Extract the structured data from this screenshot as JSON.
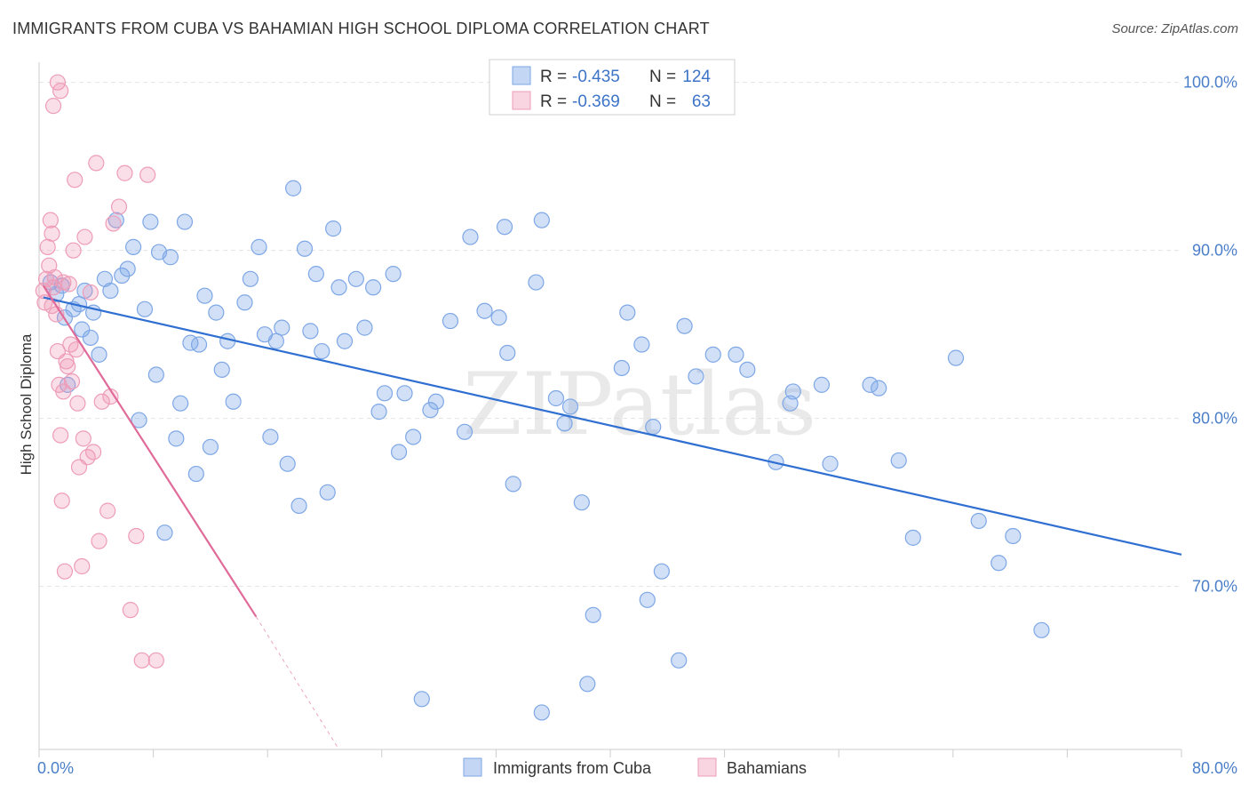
{
  "title": "IMMIGRANTS FROM CUBA VS BAHAMIAN HIGH SCHOOL DIPLOMA CORRELATION CHART",
  "source": "Source: ZipAtlas.com",
  "watermark": "ZIPatlas",
  "colors": {
    "cuba_fill": "rgba(122,167,232,0.35)",
    "cuba_stroke": "#7ea7e6",
    "cuba_line": "#2f6fd1",
    "bah_fill": "rgba(240,150,180,0.30)",
    "bah_stroke": "#ee9cb8",
    "bah_line": "#e06a98",
    "grid": "#e4e4e4",
    "tick_text": "#4a7fc8"
  },
  "legend": {
    "rows": [
      {
        "r_label": "R =",
        "r_value": "-0.435",
        "n_label": "N =",
        "n_value": "124"
      },
      {
        "r_label": "R =",
        "r_value": "-0.369",
        "n_label": "N =",
        "n_value": "63"
      }
    ]
  },
  "chart_data": {
    "type": "scatter",
    "title": "IMMIGRANTS FROM CUBA VS BAHAMIAN HIGH SCHOOL DIPLOMA CORRELATION CHART",
    "xlabel": "",
    "ylabel": "High School Diploma",
    "xlim": [
      0,
      80
    ],
    "ylim": [
      60.3,
      101.2
    ],
    "x_ticks": [
      {
        "value": 0,
        "label": "0.0%"
      },
      {
        "value": 80,
        "label": "80.0%"
      }
    ],
    "y_ticks": [
      {
        "value": 70,
        "label": "70.0%"
      },
      {
        "value": 80,
        "label": "80.0%"
      },
      {
        "value": 90,
        "label": "90.0%"
      },
      {
        "value": 100,
        "label": "100.0%"
      }
    ],
    "grid": true,
    "legend_position": "top-center",
    "series": [
      {
        "name": "Immigrants from Cuba",
        "trend": {
          "x0": 0.3,
          "y0": 87.2,
          "x1": 80,
          "y1": 71.9
        },
        "points": [
          [
            0.8,
            88.1
          ],
          [
            1.2,
            87.4
          ],
          [
            1.6,
            87.9
          ],
          [
            1.8,
            86.0
          ],
          [
            2.0,
            82.0
          ],
          [
            2.4,
            86.5
          ],
          [
            2.8,
            86.8
          ],
          [
            3.0,
            85.3
          ],
          [
            3.2,
            87.6
          ],
          [
            3.6,
            84.8
          ],
          [
            3.8,
            86.3
          ],
          [
            4.2,
            83.8
          ],
          [
            4.6,
            88.3
          ],
          [
            5.0,
            87.6
          ],
          [
            5.4,
            91.8
          ],
          [
            5.8,
            88.5
          ],
          [
            6.2,
            88.9
          ],
          [
            6.6,
            90.2
          ],
          [
            7.0,
            79.9
          ],
          [
            7.4,
            86.5
          ],
          [
            7.8,
            91.7
          ],
          [
            8.2,
            82.6
          ],
          [
            8.4,
            89.9
          ],
          [
            8.8,
            73.2
          ],
          [
            9.2,
            89.6
          ],
          [
            9.6,
            78.8
          ],
          [
            9.9,
            80.9
          ],
          [
            10.2,
            91.7
          ],
          [
            10.6,
            84.5
          ],
          [
            11.0,
            76.7
          ],
          [
            11.2,
            84.4
          ],
          [
            11.6,
            87.3
          ],
          [
            12.0,
            78.3
          ],
          [
            12.4,
            86.3
          ],
          [
            12.8,
            82.9
          ],
          [
            13.2,
            84.6
          ],
          [
            13.6,
            81.0
          ],
          [
            14.4,
            86.9
          ],
          [
            14.8,
            88.3
          ],
          [
            15.4,
            90.2
          ],
          [
            15.8,
            85.0
          ],
          [
            16.2,
            78.9
          ],
          [
            16.6,
            84.6
          ],
          [
            17.0,
            85.4
          ],
          [
            17.4,
            77.3
          ],
          [
            17.8,
            93.7
          ],
          [
            18.2,
            74.8
          ],
          [
            18.6,
            90.1
          ],
          [
            19.0,
            85.2
          ],
          [
            19.4,
            88.6
          ],
          [
            19.8,
            84.0
          ],
          [
            20.2,
            75.6
          ],
          [
            20.6,
            91.3
          ],
          [
            21.0,
            87.8
          ],
          [
            21.4,
            84.6
          ],
          [
            22.2,
            88.3
          ],
          [
            22.8,
            85.4
          ],
          [
            23.4,
            87.8
          ],
          [
            23.8,
            80.4
          ],
          [
            24.2,
            81.5
          ],
          [
            24.8,
            88.6
          ],
          [
            25.2,
            78.0
          ],
          [
            25.6,
            81.5
          ],
          [
            26.2,
            78.9
          ],
          [
            26.8,
            63.3
          ],
          [
            27.4,
            80.5
          ],
          [
            27.8,
            81.0
          ],
          [
            28.8,
            85.8
          ],
          [
            29.8,
            79.2
          ],
          [
            30.2,
            90.8
          ],
          [
            31.2,
            86.4
          ],
          [
            32.2,
            86.0
          ],
          [
            32.6,
            91.4
          ],
          [
            32.8,
            83.9
          ],
          [
            33.2,
            76.1
          ],
          [
            34.8,
            88.1
          ],
          [
            35.2,
            91.8
          ],
          [
            36.2,
            81.2
          ],
          [
            36.8,
            79.7
          ],
          [
            37.2,
            80.7
          ],
          [
            38.0,
            75.0
          ],
          [
            38.4,
            64.2
          ],
          [
            38.8,
            68.3
          ],
          [
            40.8,
            83.0
          ],
          [
            41.2,
            86.3
          ],
          [
            42.2,
            84.4
          ],
          [
            42.6,
            69.2
          ],
          [
            43.0,
            79.5
          ],
          [
            43.6,
            70.9
          ],
          [
            44.8,
            65.6
          ],
          [
            45.2,
            85.5
          ],
          [
            46.0,
            82.5
          ],
          [
            47.2,
            83.8
          ],
          [
            48.8,
            83.8
          ],
          [
            49.6,
            82.9
          ],
          [
            51.6,
            77.4
          ],
          [
            52.6,
            80.9
          ],
          [
            52.8,
            81.6
          ],
          [
            54.8,
            82.0
          ],
          [
            55.4,
            77.3
          ],
          [
            58.2,
            82.0
          ],
          [
            58.8,
            81.8
          ],
          [
            60.2,
            77.5
          ],
          [
            61.2,
            72.9
          ],
          [
            64.2,
            83.6
          ],
          [
            65.8,
            73.9
          ],
          [
            67.2,
            71.4
          ],
          [
            68.2,
            73.0
          ],
          [
            70.2,
            67.4
          ],
          [
            35.2,
            62.5
          ]
        ]
      },
      {
        "name": "Bahamians",
        "trend": {
          "x0": 0.3,
          "y0": 87.9,
          "x1": 15.2,
          "y1": 68.2
        },
        "trend_dashed": {
          "x0": 15.2,
          "y0": 68.2,
          "x1": 21.0,
          "y1": 60.3
        },
        "points": [
          [
            0.3,
            87.6
          ],
          [
            0.4,
            86.9
          ],
          [
            0.5,
            88.3
          ],
          [
            0.6,
            90.2
          ],
          [
            0.7,
            89.1
          ],
          [
            0.8,
            91.8
          ],
          [
            0.9,
            91.0
          ],
          [
            1.0,
            87.8
          ],
          [
            1.1,
            88.4
          ],
          [
            1.2,
            86.2
          ],
          [
            1.3,
            84.0
          ],
          [
            1.4,
            82.0
          ],
          [
            1.5,
            79.0
          ],
          [
            1.6,
            75.1
          ],
          [
            1.7,
            81.6
          ],
          [
            1.8,
            70.9
          ],
          [
            1.9,
            83.4
          ],
          [
            2.0,
            83.1
          ],
          [
            2.1,
            88.0
          ],
          [
            2.2,
            84.4
          ],
          [
            2.3,
            82.2
          ],
          [
            2.4,
            90.0
          ],
          [
            2.5,
            94.2
          ],
          [
            2.6,
            84.1
          ],
          [
            2.8,
            77.1
          ],
          [
            3.0,
            71.2
          ],
          [
            3.2,
            90.8
          ],
          [
            3.4,
            77.7
          ],
          [
            3.6,
            87.5
          ],
          [
            3.8,
            78.0
          ],
          [
            4.0,
            95.2
          ],
          [
            4.4,
            81.0
          ],
          [
            4.8,
            74.5
          ],
          [
            5.2,
            91.6
          ],
          [
            5.6,
            92.6
          ],
          [
            6.0,
            94.6
          ],
          [
            6.4,
            68.6
          ],
          [
            6.8,
            73.0
          ],
          [
            7.2,
            65.6
          ],
          [
            7.6,
            94.5
          ],
          [
            8.2,
            65.6
          ],
          [
            1.0,
            98.6
          ],
          [
            1.3,
            100.0
          ],
          [
            1.5,
            99.5
          ],
          [
            2.7,
            80.9
          ],
          [
            3.1,
            78.8
          ],
          [
            4.2,
            72.7
          ],
          [
            0.9,
            86.7
          ],
          [
            1.7,
            88.1
          ],
          [
            5.0,
            81.3
          ]
        ]
      }
    ]
  },
  "bottom_legend": [
    {
      "label": "Immigrants from Cuba"
    },
    {
      "label": "Bahamians"
    }
  ]
}
